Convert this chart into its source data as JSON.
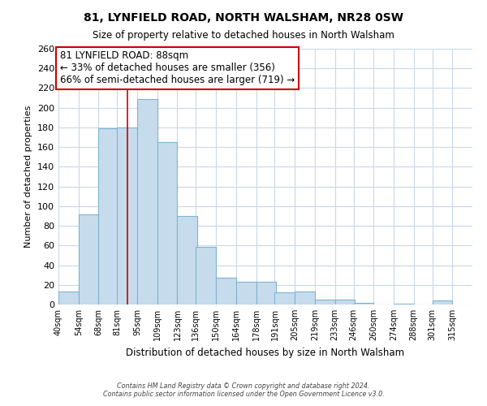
{
  "title": "81, LYNFIELD ROAD, NORTH WALSHAM, NR28 0SW",
  "subtitle": "Size of property relative to detached houses in North Walsham",
  "xlabel": "Distribution of detached houses by size in North Walsham",
  "ylabel": "Number of detached properties",
  "bin_labels": [
    "40sqm",
    "54sqm",
    "68sqm",
    "81sqm",
    "95sqm",
    "109sqm",
    "123sqm",
    "136sqm",
    "150sqm",
    "164sqm",
    "178sqm",
    "191sqm",
    "205sqm",
    "219sqm",
    "233sqm",
    "246sqm",
    "260sqm",
    "274sqm",
    "288sqm",
    "301sqm",
    "315sqm"
  ],
  "bin_edges": [
    40,
    54,
    68,
    81,
    95,
    109,
    123,
    136,
    150,
    164,
    178,
    191,
    205,
    219,
    233,
    246,
    260,
    274,
    288,
    301,
    315
  ],
  "bar_heights": [
    13,
    92,
    179,
    180,
    209,
    165,
    90,
    59,
    27,
    23,
    23,
    12,
    13,
    5,
    5,
    2,
    0,
    1,
    0,
    4
  ],
  "bar_color": "#c6dcec",
  "bar_edge_color": "#7fb3d3",
  "property_line_x": 88,
  "property_line_color": "#cc0000",
  "annotation_line1": "81 LYNFIELD ROAD: 88sqm",
  "annotation_line2": "← 33% of detached houses are smaller (356)",
  "annotation_line3": "66% of semi-detached houses are larger (719) →",
  "annotation_box_color": "#ffffff",
  "annotation_box_edge": "#cc0000",
  "ylim": [
    0,
    260
  ],
  "yticks": [
    0,
    20,
    40,
    60,
    80,
    100,
    120,
    140,
    160,
    180,
    200,
    220,
    240,
    260
  ],
  "xlim_min": 40,
  "xlim_max": 329,
  "background_color": "#ffffff",
  "grid_color": "#c8d8e8",
  "footer_line1": "Contains HM Land Registry data © Crown copyright and database right 2024.",
  "footer_line2": "Contains public sector information licensed under the Open Government Licence v3.0."
}
